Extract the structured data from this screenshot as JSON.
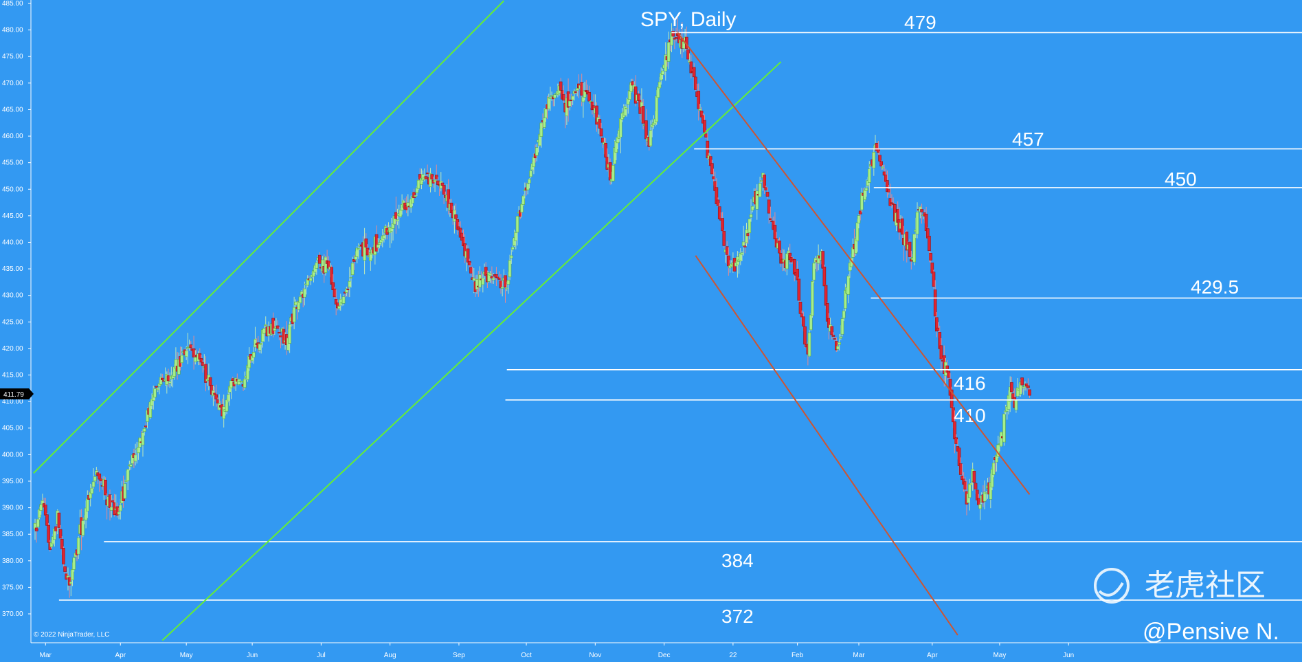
{
  "chart_data": {
    "type": "candlestick",
    "title": "SPY, Daily",
    "copyright": "© 2022 NinjaTrader, LLC",
    "last_price": "411.79",
    "ylim": [
      367,
      485
    ],
    "y_ticks": [
      "485.00",
      "480.00",
      "475.00",
      "470.00",
      "465.00",
      "460.00",
      "455.00",
      "450.00",
      "445.00",
      "440.00",
      "435.00",
      "430.00",
      "425.00",
      "420.00",
      "415.00",
      "410.00",
      "405.00",
      "400.00",
      "395.00",
      "390.00",
      "385.00",
      "380.00",
      "375.00",
      "370.00"
    ],
    "x_months": [
      "Mar",
      "Apr",
      "May",
      "Jun",
      "Jul",
      "Aug",
      "Sep",
      "Oct",
      "Nov",
      "Dec",
      "22",
      "Feb",
      "Mar",
      "Apr",
      "May",
      "Jun"
    ],
    "close_path": [
      [
        0,
        386
      ],
      [
        5,
        392
      ],
      [
        10,
        382
      ],
      [
        15,
        388
      ],
      [
        20,
        378
      ],
      [
        23,
        375
      ],
      [
        30,
        385
      ],
      [
        35,
        392
      ],
      [
        42,
        397
      ],
      [
        48,
        392
      ],
      [
        55,
        388
      ],
      [
        62,
        397
      ],
      [
        70,
        402
      ],
      [
        76,
        408
      ],
      [
        83,
        414
      ],
      [
        90,
        414
      ],
      [
        97,
        418
      ],
      [
        104,
        420
      ],
      [
        111,
        417
      ],
      [
        118,
        412
      ],
      [
        125,
        408
      ],
      [
        132,
        414
      ],
      [
        139,
        414
      ],
      [
        146,
        420
      ],
      [
        153,
        423
      ],
      [
        160,
        424
      ],
      [
        167,
        421
      ],
      [
        174,
        428
      ],
      [
        181,
        432
      ],
      [
        188,
        436
      ],
      [
        195,
        436
      ],
      [
        202,
        428
      ],
      [
        209,
        432
      ],
      [
        216,
        439
      ],
      [
        223,
        438
      ],
      [
        230,
        440
      ],
      [
        237,
        443
      ],
      [
        244,
        446
      ],
      [
        251,
        448
      ],
      [
        258,
        452
      ],
      [
        265,
        452
      ],
      [
        272,
        450
      ],
      [
        279,
        445
      ],
      [
        286,
        440
      ],
      [
        293,
        432
      ],
      [
        300,
        434
      ],
      [
        307,
        433
      ],
      [
        314,
        431
      ],
      [
        321,
        442
      ],
      [
        328,
        450
      ],
      [
        335,
        458
      ],
      [
        342,
        466
      ],
      [
        349,
        468
      ],
      [
        356,
        466
      ],
      [
        363,
        470
      ],
      [
        370,
        466
      ],
      [
        377,
        462
      ],
      [
        384,
        452
      ],
      [
        391,
        463
      ],
      [
        398,
        470
      ],
      [
        405,
        465
      ],
      [
        410,
        458
      ],
      [
        418,
        472
      ],
      [
        425,
        478
      ],
      [
        429,
        479
      ],
      [
        434,
        477
      ],
      [
        438,
        472
      ],
      [
        444,
        465
      ],
      [
        450,
        456
      ],
      [
        456,
        446
      ],
      [
        462,
        437
      ],
      [
        468,
        435
      ],
      [
        474,
        440
      ],
      [
        480,
        448
      ],
      [
        486,
        452
      ],
      [
        492,
        444
      ],
      [
        498,
        436
      ],
      [
        504,
        438
      ],
      [
        508,
        434
      ],
      [
        512,
        425
      ],
      [
        516,
        418
      ],
      [
        520,
        436
      ],
      [
        525,
        438
      ],
      [
        529,
        425
      ],
      [
        533,
        422
      ],
      [
        537,
        420
      ],
      [
        541,
        430
      ],
      [
        546,
        438
      ],
      [
        552,
        448
      ],
      [
        558,
        454
      ],
      [
        561,
        458
      ],
      [
        566,
        454
      ],
      [
        571,
        448
      ],
      [
        576,
        444
      ],
      [
        581,
        441
      ],
      [
        585,
        437
      ],
      [
        590,
        446
      ],
      [
        594,
        444
      ],
      [
        598,
        438
      ],
      [
        602,
        424
      ],
      [
        606,
        418
      ],
      [
        610,
        414
      ],
      [
        614,
        403
      ],
      [
        618,
        398
      ],
      [
        622,
        392
      ],
      [
        626,
        396
      ],
      [
        630,
        390
      ],
      [
        634,
        392
      ],
      [
        638,
        395
      ],
      [
        642,
        400
      ],
      [
        646,
        405
      ],
      [
        650,
        412
      ],
      [
        655,
        410
      ],
      [
        660,
        414
      ],
      [
        664,
        411.79
      ]
    ],
    "levels": [
      {
        "label": "479",
        "value": 479.5,
        "x_from": 425
      },
      {
        "label": "457",
        "value": 457.6,
        "x_from": 440
      },
      {
        "label": "450",
        "value": 450.3,
        "x_from": 560
      },
      {
        "label": "429.5",
        "value": 429.5,
        "x_from": 558
      },
      {
        "label": "416",
        "value": 416.0,
        "x_from": 315
      },
      {
        "label": "410",
        "value": 410.3,
        "x_from": 314
      },
      {
        "label": "384",
        "value": 383.6,
        "x_from": 46
      },
      {
        "label": "372",
        "value": 372.6,
        "x_from": 16
      }
    ],
    "trendlines": [
      {
        "name": "upper-channel",
        "color": "#66ee33",
        "points": [
          [
            -1,
            396.5
          ],
          [
            313,
            485.5
          ]
        ]
      },
      {
        "name": "lower-channel",
        "color": "#66ee33",
        "points": [
          [
            85,
            365
          ],
          [
            498,
            474
          ]
        ]
      },
      {
        "name": "downtrend-upper",
        "color": "#cc5533",
        "points": [
          [
            429,
            479.5
          ],
          [
            664,
            392.5
          ]
        ]
      },
      {
        "name": "downtrend-lower",
        "color": "#cc5533",
        "points": [
          [
            441,
            437.5
          ],
          [
            616,
            366
          ]
        ]
      }
    ],
    "up_color": "#a6ee8a",
    "down_color": "#e02430",
    "background": "#3399f2"
  },
  "watermark": {
    "brand": "老虎社区",
    "author": "@Pensive N."
  }
}
